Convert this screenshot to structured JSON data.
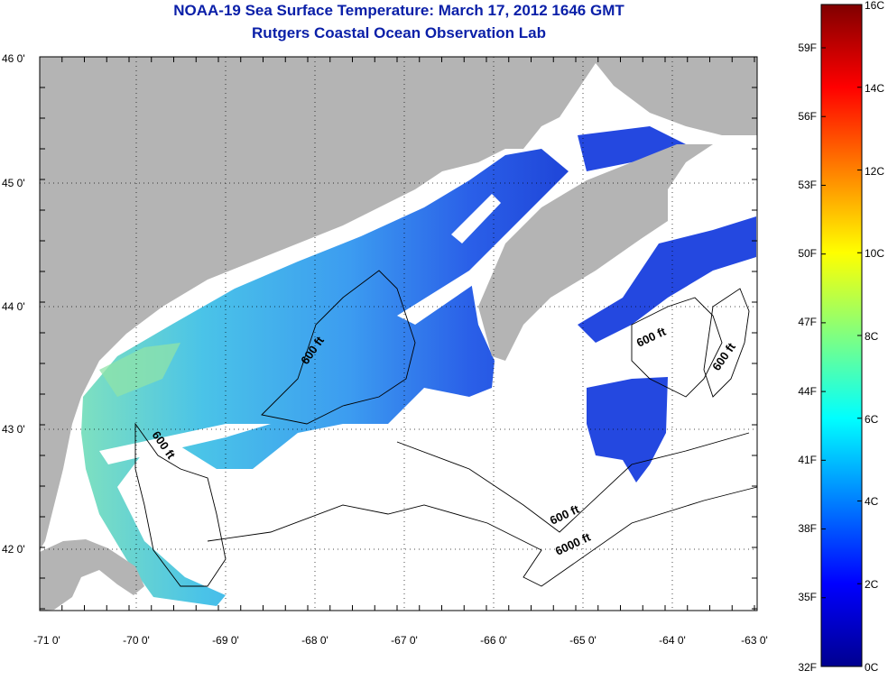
{
  "title_line1": "NOAA-19 Sea Surface Temperature:  March 17, 2012 1646 GMT",
  "title_line2": "Rutgers Coastal Ocean Observation Lab",
  "map": {
    "lat_ticks": [
      "46 0'",
      "45 0'",
      "44 0'",
      "43 0'",
      "42 0'"
    ],
    "lon_ticks": [
      "-71 0'",
      "-70 0'",
      "-69 0'",
      "-68 0'",
      "-67 0'",
      "-66 0'",
      "-65 0'",
      "-64 0'",
      "-63 0'"
    ],
    "contour_labels": [
      "600 ft",
      "600 ft",
      "600 ft",
      "600 ft",
      "600 ft",
      "6000 ft"
    ],
    "colors": {
      "land": "#b4b4b4",
      "cloud": "#ffffff",
      "sea_warm": "#6fd6c8",
      "sea_mid": "#3aa8f0",
      "sea_cold": "#1f4ee0"
    }
  },
  "colorbar": {
    "celsius_labels": [
      "16C",
      "14C",
      "12C",
      "10C",
      "8C",
      "6C",
      "4C",
      "2C",
      "0C"
    ],
    "fahrenheit_labels": [
      "59F",
      "56F",
      "53F",
      "50F",
      "47F",
      "44F",
      "41F",
      "38F",
      "35F",
      "32F"
    ],
    "colors": [
      "#00008f",
      "#0000ff",
      "#0080ff",
      "#00ffff",
      "#80ff80",
      "#ffff00",
      "#ff8000",
      "#ff0000",
      "#800000"
    ]
  }
}
